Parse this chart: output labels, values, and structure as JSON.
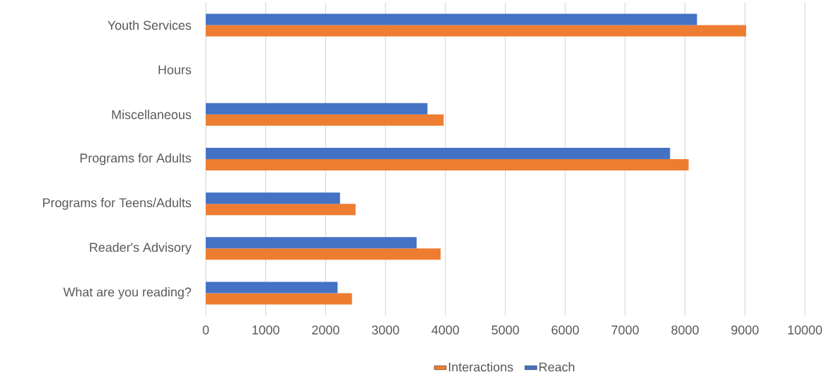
{
  "chart_data": {
    "type": "bar",
    "orientation": "horizontal",
    "categories": [
      "Youth Services",
      "Hours",
      "Miscellaneous",
      "Programs for Adults",
      "Programs for Teens/Adults",
      "Reader's Advisory",
      "What are you reading?"
    ],
    "series": [
      {
        "name": "Interactions",
        "color": "#ed7d31",
        "values": [
          9020,
          null,
          3970,
          8060,
          2500,
          3920,
          2440
        ]
      },
      {
        "name": "Reach",
        "color": "#4472c4",
        "values": [
          8200,
          null,
          3700,
          7750,
          2240,
          3520,
          2200
        ]
      }
    ],
    "xlim": [
      0,
      10000
    ],
    "xticks": [
      0,
      1000,
      2000,
      3000,
      4000,
      5000,
      6000,
      7000,
      8000,
      9000,
      10000
    ],
    "grid": "x",
    "legend": "bottom"
  }
}
